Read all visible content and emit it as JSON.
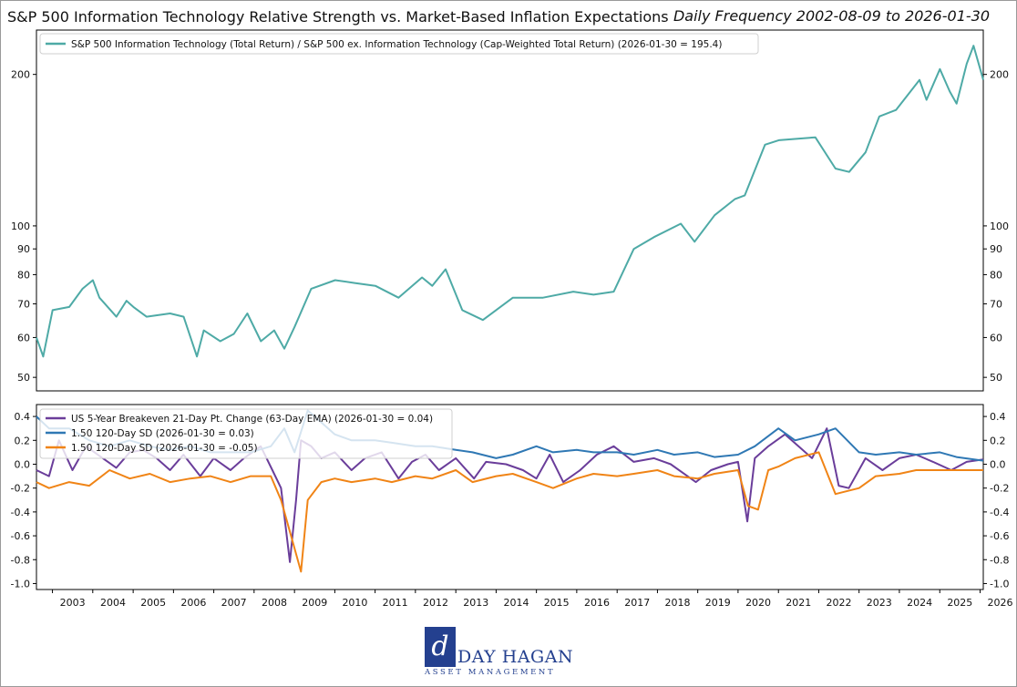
{
  "header": {
    "title": "S&P 500 Information Technology Relative Strength vs. Market-Based Inflation Expectations",
    "subtitle": "Daily Frequency 2002-08-09 to 2026-01-30"
  },
  "logo": {
    "mark": "d",
    "name": "DAY HAGAN",
    "sub": "ASSET MANAGEMENT"
  },
  "colors": {
    "teal": "#4eaaa6",
    "purple": "#6a3d9a",
    "blue": "#2f78b4",
    "orange": "#f08416"
  },
  "chart_data": [
    {
      "type": "line",
      "y_scale": "log",
      "ylim": [
        47,
        245
      ],
      "xlim": [
        "2002-08-09",
        "2026-01-30"
      ],
      "y_ticks": [
        50,
        60,
        70,
        80,
        90,
        100,
        200
      ],
      "grid": false,
      "legend_position": "top-left",
      "series": [
        {
          "name": "S&P 500 Information Technology (Total Return) / S&P 500 ex. Information Technology (Cap-Weighted Total Return) (2026-01-30 = 195.4)",
          "color": "#4eaaa6",
          "x": [
            "2002-08-09",
            "2002-10-09",
            "2003-01-02",
            "2003-06-02",
            "2003-10-01",
            "2004-01-02",
            "2004-03-01",
            "2004-08-02",
            "2004-11-01",
            "2005-01-03",
            "2005-05-02",
            "2005-12-01",
            "2006-04-03",
            "2006-08-01",
            "2006-10-02",
            "2007-03-01",
            "2007-07-02",
            "2007-11-01",
            "2008-03-03",
            "2008-07-01",
            "2008-10-01",
            "2009-01-02",
            "2009-06-01",
            "2010-01-04",
            "2010-07-01",
            "2011-01-03",
            "2011-08-01",
            "2012-03-01",
            "2012-06-01",
            "2012-10-01",
            "2013-03-01",
            "2013-09-03",
            "2014-06-02",
            "2015-03-02",
            "2015-12-01",
            "2016-06-01",
            "2016-12-01",
            "2017-06-01",
            "2017-12-01",
            "2018-08-01",
            "2018-12-03",
            "2019-06-03",
            "2019-12-02",
            "2020-03-02",
            "2020-09-01",
            "2021-01-04",
            "2021-12-01",
            "2022-06-01",
            "2022-10-03",
            "2023-03-01",
            "2023-07-03",
            "2023-12-01",
            "2024-07-01",
            "2024-09-03",
            "2025-01-02",
            "2025-04-01",
            "2025-06-02",
            "2025-09-02",
            "2025-11-03",
            "2026-01-30"
          ],
          "values": [
            60,
            55,
            68,
            69,
            75,
            78,
            72,
            66,
            71,
            69,
            66,
            67,
            66,
            55,
            62,
            59,
            61,
            67,
            59,
            62,
            57,
            63,
            75,
            78,
            77,
            76,
            72,
            79,
            76,
            82,
            68,
            65,
            72,
            72,
            74,
            73,
            74,
            90,
            95,
            101,
            93,
            105,
            113,
            115,
            145,
            148,
            150,
            130,
            128,
            140,
            165,
            170,
            195,
            178,
            205,
            185,
            175,
            210,
            228,
            195
          ]
        }
      ]
    },
    {
      "type": "line",
      "ylim": [
        -1.05,
        0.5
      ],
      "xlim": [
        "2002-08-09",
        "2026-01-30"
      ],
      "y_ticks": [
        -1.0,
        -0.8,
        -0.6,
        -0.4,
        -0.2,
        0.0,
        0.2,
        0.4
      ],
      "x_ticks": [
        "2003",
        "2004",
        "2005",
        "2006",
        "2007",
        "2008",
        "2009",
        "2010",
        "2011",
        "2012",
        "2013",
        "2014",
        "2015",
        "2016",
        "2017",
        "2018",
        "2019",
        "2020",
        "2021",
        "2022",
        "2023",
        "2024",
        "2025",
        "2026"
      ],
      "grid": false,
      "legend_position": "top-left",
      "series": [
        {
          "name": "US 5-Year Breakeven 21-Day Pt. Change (63-Day EMA) (2026-01-30 = 0.04)",
          "color": "#6a3d9a",
          "x": [
            "2002-08-09",
            "2002-12-01",
            "2003-03-01",
            "2003-07-01",
            "2003-11-01",
            "2004-04-01",
            "2004-08-01",
            "2004-12-01",
            "2005-04-01",
            "2005-08-01",
            "2005-12-01",
            "2006-04-01",
            "2006-09-01",
            "2007-01-01",
            "2007-06-01",
            "2007-10-01",
            "2008-03-01",
            "2008-06-15",
            "2008-09-01",
            "2008-11-20",
            "2009-01-15",
            "2009-03-01",
            "2009-06-01",
            "2009-09-01",
            "2010-01-01",
            "2010-06-01",
            "2010-10-01",
            "2011-03-01",
            "2011-08-01",
            "2011-12-01",
            "2012-04-01",
            "2012-08-01",
            "2013-01-01",
            "2013-06-15",
            "2013-10-01",
            "2014-04-01",
            "2014-09-01",
            "2015-01-01",
            "2015-05-01",
            "2015-09-01",
            "2016-02-01",
            "2016-07-01",
            "2016-12-01",
            "2017-06-01",
            "2017-12-01",
            "2018-05-01",
            "2018-12-15",
            "2019-05-01",
            "2019-10-01",
            "2020-01-01",
            "2020-03-25",
            "2020-06-01",
            "2020-10-01",
            "2021-03-01",
            "2021-07-01",
            "2021-11-01",
            "2022-03-15",
            "2022-07-01",
            "2022-10-01",
            "2023-03-01",
            "2023-08-01",
            "2024-01-01",
            "2024-06-01",
            "2024-11-01",
            "2025-04-15",
            "2025-09-01",
            "2026-01-30"
          ],
          "values": [
            -0.05,
            -0.1,
            0.2,
            -0.05,
            0.15,
            0.05,
            -0.03,
            0.1,
            0.12,
            0.05,
            -0.05,
            0.08,
            -0.1,
            0.05,
            -0.05,
            0.05,
            0.15,
            -0.05,
            -0.2,
            -0.82,
            -0.3,
            0.2,
            0.15,
            0.05,
            0.1,
            -0.05,
            0.05,
            0.1,
            -0.12,
            0.02,
            0.08,
            -0.05,
            0.05,
            -0.12,
            0.02,
            0.0,
            -0.05,
            -0.12,
            0.08,
            -0.15,
            -0.05,
            0.08,
            0.15,
            0.02,
            0.05,
            0.0,
            -0.15,
            -0.05,
            0.0,
            0.02,
            -0.48,
            0.05,
            0.15,
            0.25,
            0.15,
            0.05,
            0.3,
            -0.18,
            -0.2,
            0.05,
            -0.05,
            0.05,
            0.08,
            0.02,
            -0.05,
            0.02,
            0.04
          ]
        },
        {
          "name": "1.50 120-Day SD (2026-01-30 = 0.03)",
          "color": "#2f78b4",
          "x": [
            "2002-08-09",
            "2002-12-01",
            "2003-06-01",
            "2003-12-01",
            "2004-06-01",
            "2004-12-01",
            "2005-06-01",
            "2005-12-01",
            "2006-06-01",
            "2006-12-01",
            "2007-06-01",
            "2007-12-01",
            "2008-06-01",
            "2008-10-01",
            "2009-01-01",
            "2009-05-01",
            "2009-09-01",
            "2010-01-01",
            "2010-06-01",
            "2011-01-01",
            "2011-06-01",
            "2012-01-01",
            "2012-06-01",
            "2013-01-01",
            "2013-06-01",
            "2014-01-01",
            "2014-06-01",
            "2015-01-01",
            "2015-06-01",
            "2016-01-01",
            "2016-06-01",
            "2017-01-01",
            "2017-06-01",
            "2018-01-01",
            "2018-06-01",
            "2019-01-01",
            "2019-06-01",
            "2020-01-01",
            "2020-06-01",
            "2021-01-01",
            "2021-06-01",
            "2022-01-01",
            "2022-06-01",
            "2023-01-01",
            "2023-06-01",
            "2024-01-01",
            "2024-06-01",
            "2025-01-01",
            "2025-06-01",
            "2026-01-30"
          ],
          "values": [
            0.4,
            0.3,
            0.3,
            0.2,
            0.15,
            0.2,
            0.15,
            0.12,
            0.15,
            0.1,
            0.1,
            0.1,
            0.15,
            0.3,
            0.1,
            0.45,
            0.35,
            0.25,
            0.2,
            0.2,
            0.18,
            0.15,
            0.15,
            0.12,
            0.1,
            0.05,
            0.08,
            0.15,
            0.1,
            0.12,
            0.1,
            0.1,
            0.08,
            0.12,
            0.08,
            0.1,
            0.06,
            0.08,
            0.15,
            0.3,
            0.2,
            0.25,
            0.3,
            0.1,
            0.08,
            0.1,
            0.08,
            0.1,
            0.06,
            0.03
          ]
        },
        {
          "name": "1.50 120-Day SD (2026-01-30 = -0.05)",
          "color": "#f08416",
          "x": [
            "2002-08-09",
            "2002-12-01",
            "2003-06-01",
            "2003-12-01",
            "2004-06-01",
            "2004-12-01",
            "2005-06-01",
            "2005-12-01",
            "2006-06-01",
            "2006-12-01",
            "2007-06-01",
            "2007-12-01",
            "2008-06-01",
            "2008-09-01",
            "2008-12-01",
            "2009-03-01",
            "2009-05-01",
            "2009-09-01",
            "2010-01-01",
            "2010-06-01",
            "2011-01-01",
            "2011-06-01",
            "2012-01-01",
            "2012-06-01",
            "2013-01-01",
            "2013-06-01",
            "2014-01-01",
            "2014-06-01",
            "2015-01-01",
            "2015-06-01",
            "2016-01-01",
            "2016-06-01",
            "2017-01-01",
            "2017-06-01",
            "2018-01-01",
            "2018-06-01",
            "2019-01-01",
            "2019-06-01",
            "2020-01-01",
            "2020-04-01",
            "2020-07-01",
            "2020-10-01",
            "2021-01-01",
            "2021-06-01",
            "2022-01-01",
            "2022-06-01",
            "2023-01-01",
            "2023-06-01",
            "2024-01-01",
            "2024-06-01",
            "2025-01-01",
            "2025-06-01",
            "2026-01-30"
          ],
          "values": [
            -0.15,
            -0.2,
            -0.15,
            -0.18,
            -0.05,
            -0.12,
            -0.08,
            -0.15,
            -0.12,
            -0.1,
            -0.15,
            -0.1,
            -0.1,
            -0.3,
            -0.6,
            -0.9,
            -0.3,
            -0.15,
            -0.12,
            -0.15,
            -0.12,
            -0.15,
            -0.1,
            -0.12,
            -0.05,
            -0.15,
            -0.1,
            -0.08,
            -0.15,
            -0.2,
            -0.12,
            -0.08,
            -0.1,
            -0.08,
            -0.05,
            -0.1,
            -0.12,
            -0.08,
            -0.05,
            -0.35,
            -0.38,
            -0.05,
            -0.02,
            0.05,
            0.1,
            -0.25,
            -0.2,
            -0.1,
            -0.08,
            -0.05,
            -0.05,
            -0.05,
            -0.05
          ]
        }
      ]
    }
  ]
}
